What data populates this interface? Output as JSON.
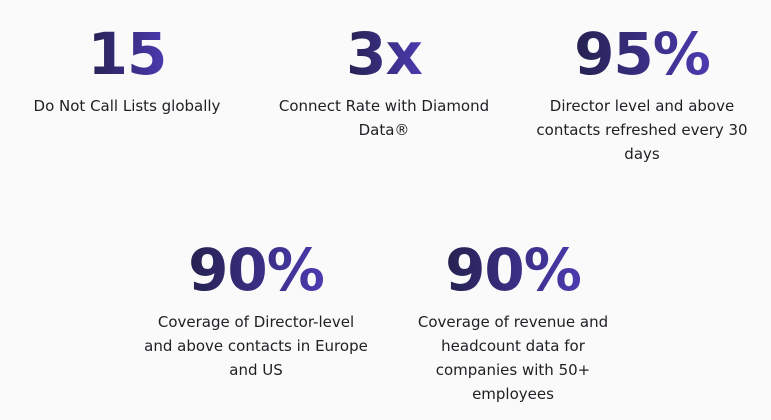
{
  "stats": [
    {
      "value": "15",
      "label": "Do Not Call Lists globally"
    },
    {
      "value": "3x",
      "label": "Connect Rate with Diamond Data®"
    },
    {
      "value": "95%",
      "label": "Director level and above contacts refreshed every 30 days"
    },
    {
      "value": "90%",
      "label": "Coverage of Director-level and above contacts in Europe and US"
    },
    {
      "value": "90%",
      "label": "Coverage of revenue and headcount data for companies with 50+ employees"
    }
  ]
}
